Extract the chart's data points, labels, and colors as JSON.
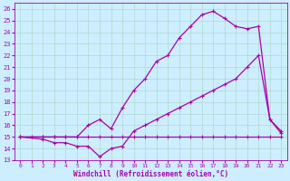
{
  "xlabel": "Windchill (Refroidissement éolien,°C)",
  "bg_color": "#cceeff",
  "grid_color": "#b0d8cc",
  "line_color": "#aa00aa",
  "xlim": [
    -0.5,
    23.5
  ],
  "ylim": [
    13,
    26.5
  ],
  "xticks": [
    0,
    1,
    2,
    3,
    4,
    5,
    6,
    7,
    8,
    9,
    10,
    11,
    12,
    13,
    14,
    15,
    16,
    17,
    18,
    19,
    20,
    21,
    22,
    23
  ],
  "yticks": [
    13,
    14,
    15,
    16,
    17,
    18,
    19,
    20,
    21,
    22,
    23,
    24,
    25,
    26
  ],
  "line1_x": [
    0,
    1,
    2,
    3,
    4,
    5,
    6,
    7,
    8,
    9,
    10,
    11,
    12,
    13,
    14,
    15,
    16,
    17,
    18,
    19,
    20,
    21,
    22,
    23
  ],
  "line1_y": [
    15,
    15,
    15,
    15,
    15,
    15,
    15,
    15,
    15,
    15,
    15,
    15,
    15,
    15,
    15,
    15,
    15,
    15,
    15,
    15,
    15,
    15,
    15,
    15
  ],
  "line2_x": [
    0,
    2,
    3,
    4,
    5,
    6,
    7,
    8,
    9,
    10,
    11,
    12,
    13,
    14,
    15,
    16,
    17,
    18,
    19,
    20,
    21,
    22,
    23
  ],
  "line2_y": [
    15,
    14.8,
    14.5,
    14.5,
    14.2,
    14.2,
    13.3,
    14.0,
    14.2,
    15.5,
    16.0,
    16.5,
    17.0,
    17.5,
    18.0,
    18.5,
    19.0,
    19.5,
    20.0,
    21.0,
    22.0,
    16.5,
    15.5
  ],
  "line3_x": [
    0,
    2,
    3,
    4,
    5,
    6,
    7,
    8,
    9,
    10,
    11,
    12,
    13,
    14,
    15,
    16,
    17,
    18,
    19,
    20,
    21,
    22,
    23
  ],
  "line3_y": [
    15,
    15,
    15,
    15,
    15,
    16,
    16.5,
    15.7,
    17.5,
    19.0,
    20.0,
    21.5,
    22.0,
    23.5,
    24.5,
    25.5,
    25.8,
    25.2,
    24.5,
    24.3,
    24.5,
    16.5,
    15.3
  ],
  "markersize": 2.0,
  "linewidth": 0.9
}
